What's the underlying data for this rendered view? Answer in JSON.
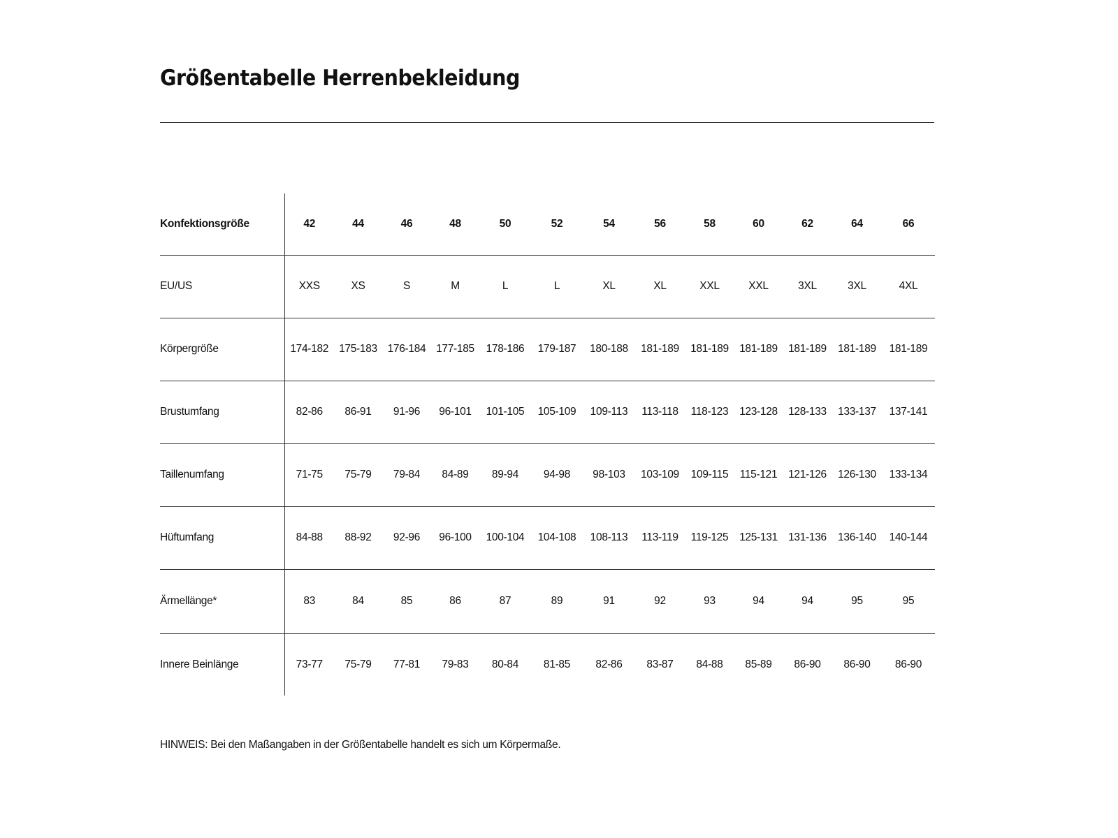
{
  "title": "Größentabelle Herrenbekleidung",
  "table": {
    "header": {
      "label": "Konfektionsgröße",
      "values": [
        "42",
        "44",
        "46",
        "48",
        "50",
        "52",
        "54",
        "56",
        "58",
        "60",
        "62",
        "64",
        "66"
      ]
    },
    "rows": [
      {
        "label": "EU/US",
        "values": [
          "XXS",
          "XS",
          "S",
          "M",
          "L",
          "L",
          "XL",
          "XL",
          "XXL",
          "XXL",
          "3XL",
          "3XL",
          "4XL"
        ]
      },
      {
        "label": "Körpergröße",
        "values": [
          "174-182",
          "175-183",
          "176-184",
          "177-185",
          "178-186",
          "179-187",
          "180-188",
          "181-189",
          "181-189",
          "181-189",
          "181-189",
          "181-189",
          "181-189"
        ]
      },
      {
        "label": "Brustumfang",
        "values": [
          "82-86",
          "86-91",
          "91-96",
          "96-101",
          "101-105",
          "105-109",
          "109-113",
          "113-118",
          "118-123",
          "123-128",
          "128-133",
          "133-137",
          "137-141"
        ]
      },
      {
        "label": "Taillenumfang",
        "values": [
          "71-75",
          "75-79",
          "79-84",
          "84-89",
          "89-94",
          "94-98",
          "98-103",
          "103-109",
          "109-115",
          "115-121",
          "121-126",
          "126-130",
          "133-134"
        ]
      },
      {
        "label": "Hüftumfang",
        "values": [
          "84-88",
          "88-92",
          "92-96",
          "96-100",
          "100-104",
          "104-108",
          "108-113",
          "113-119",
          "119-125",
          "125-131",
          "131-136",
          "136-140",
          "140-144"
        ]
      },
      {
        "label": "Ärmellänge*",
        "values": [
          "83",
          "84",
          "85",
          "86",
          "87",
          "89",
          "91",
          "92",
          "93",
          "94",
          "94",
          "95",
          "95"
        ]
      },
      {
        "label": "Innere Beinlänge",
        "values": [
          "73-77",
          "75-79",
          "77-81",
          "79-83",
          "80-84",
          "81-85",
          "82-86",
          "83-87",
          "84-88",
          "85-89",
          "86-90",
          "86-90",
          "86-90"
        ]
      }
    ]
  },
  "note": "HINWEIS: Bei den Maßangaben in der Größentabelle handelt es sich um Körpermaße."
}
